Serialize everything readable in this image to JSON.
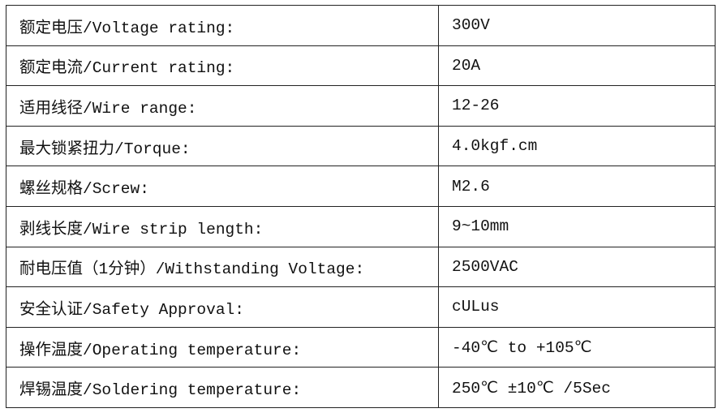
{
  "rows": [
    {
      "label": "额定电压/Voltage rating:",
      "value": "300V"
    },
    {
      "label": "额定电流/Current rating:",
      "value": "20A"
    },
    {
      "label": "适用线径/Wire range:",
      "value": "12-26"
    },
    {
      "label": "最大锁紧扭力/Torque:",
      "value": "4.0kgf.cm"
    },
    {
      "label": "螺丝规格/Screw:",
      "value": "M2.6"
    },
    {
      "label": "剥线长度/Wire strip length:",
      "value": "9~10mm"
    },
    {
      "label": "耐电压值（1分钟）/Withstanding Voltage:",
      "value": "2500VAC"
    },
    {
      "label": "安全认证/Safety Approval:",
      "value": "cULus"
    },
    {
      "label": "操作温度/Operating temperature:",
      "value": "-40℃ to +105℃"
    },
    {
      "label": "焊锡温度/Soldering temperature:",
      "value": "250℃ ±10℃ /5Sec"
    }
  ]
}
